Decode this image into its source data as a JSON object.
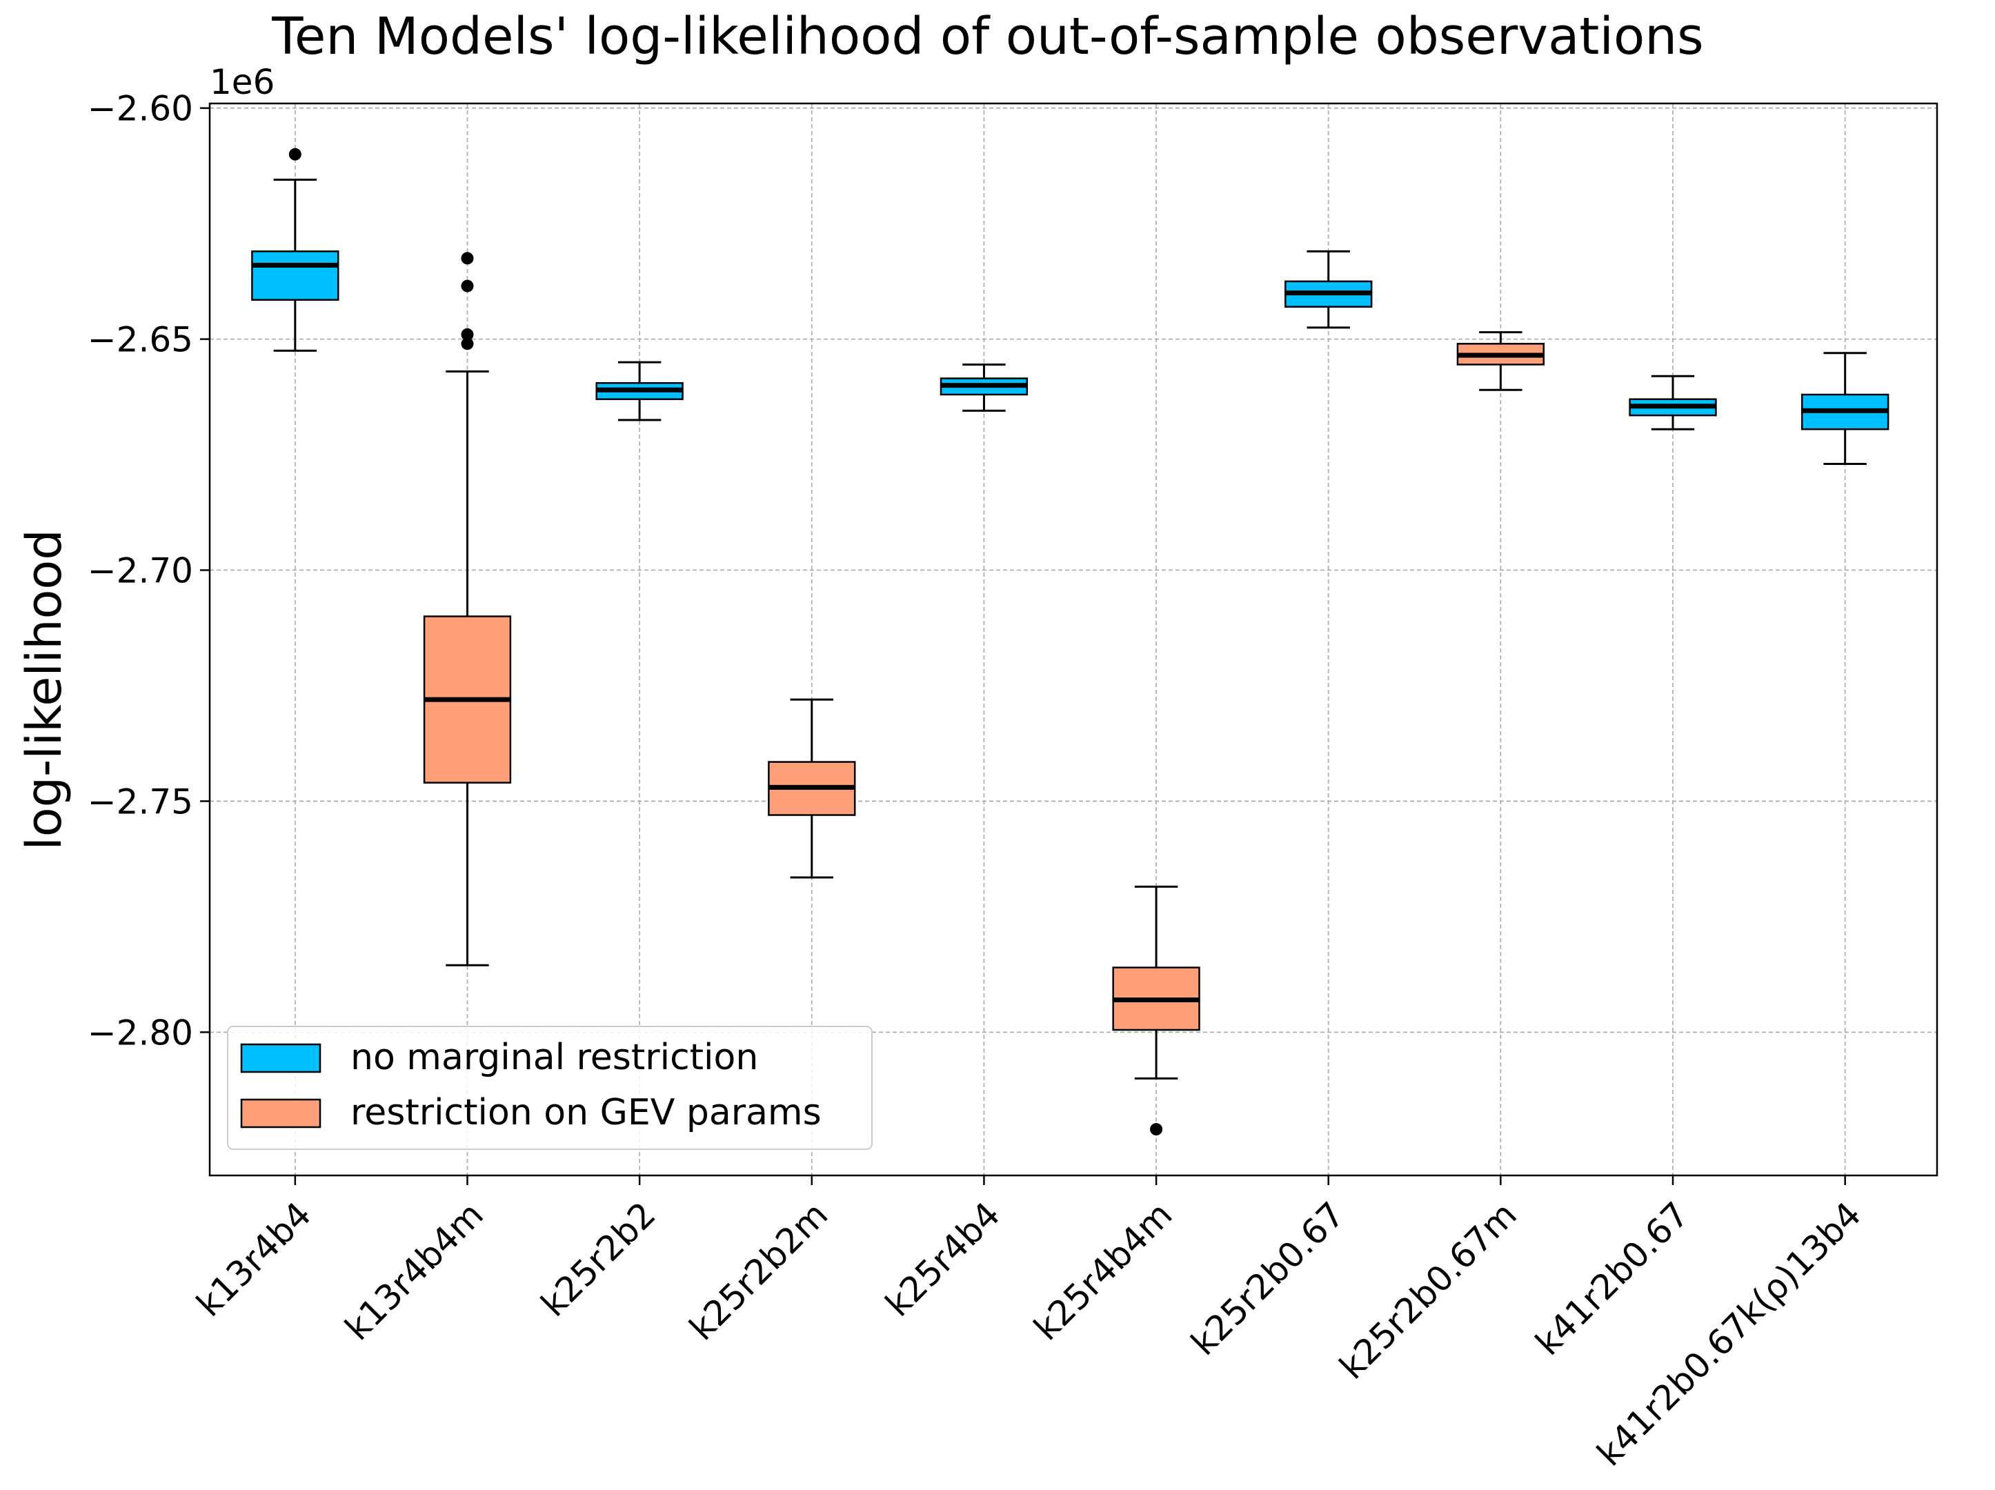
{
  "chart_data": {
    "type": "box",
    "title": "Ten Models' log-likelihood of out-of-sample observations",
    "xlabel": "",
    "ylabel": "log-likelihood",
    "y_offset_label": "1e6",
    "ylim": [
      -2.831,
      -2.599
    ],
    "yticks": [
      -2.6,
      -2.65,
      -2.7,
      -2.75,
      -2.8
    ],
    "ytick_labels": [
      "−2.60",
      "−2.65",
      "−2.70",
      "−2.75",
      "−2.80"
    ],
    "grid": true,
    "legend_position": "lower-left",
    "legend": [
      {
        "label": "no marginal restriction",
        "color": "#00bfff"
      },
      {
        "label": "restriction on GEV params",
        "color": "#ffa07a"
      }
    ],
    "categories": [
      "k13r4b4",
      "k13r4b4m",
      "k25r2b2",
      "k25r2b2m",
      "k25r4b4",
      "k25r4b4m",
      "k25r2b0.67",
      "k25r2b0.67m",
      "k41r2b0.67",
      "k41r2b0.67k(ρ)13b4"
    ],
    "boxes": [
      {
        "group": 0,
        "whisker_low": -2.6525,
        "q1": -2.6415,
        "median": -2.634,
        "q3": -2.631,
        "whisker_high": -2.6155,
        "outliers": [
          -2.61
        ]
      },
      {
        "group": 1,
        "whisker_low": -2.7855,
        "q1": -2.746,
        "median": -2.728,
        "q3": -2.71,
        "whisker_high": -2.657,
        "outliers": [
          -2.6325,
          -2.6385,
          -2.649,
          -2.651
        ]
      },
      {
        "group": 0,
        "whisker_low": -2.6675,
        "q1": -2.663,
        "median": -2.661,
        "q3": -2.6595,
        "whisker_high": -2.655,
        "outliers": []
      },
      {
        "group": 1,
        "whisker_low": -2.7665,
        "q1": -2.753,
        "median": -2.747,
        "q3": -2.7415,
        "whisker_high": -2.728,
        "outliers": []
      },
      {
        "group": 0,
        "whisker_low": -2.6655,
        "q1": -2.662,
        "median": -2.66,
        "q3": -2.6585,
        "whisker_high": -2.6555,
        "outliers": []
      },
      {
        "group": 1,
        "whisker_low": -2.81,
        "q1": -2.7995,
        "median": -2.793,
        "q3": -2.786,
        "whisker_high": -2.7685,
        "outliers": [
          -2.821
        ]
      },
      {
        "group": 0,
        "whisker_low": -2.6475,
        "q1": -2.643,
        "median": -2.64,
        "q3": -2.6375,
        "whisker_high": -2.631,
        "outliers": []
      },
      {
        "group": 1,
        "whisker_low": -2.661,
        "q1": -2.6555,
        "median": -2.6535,
        "q3": -2.651,
        "whisker_high": -2.6485,
        "outliers": []
      },
      {
        "group": 0,
        "whisker_low": -2.6695,
        "q1": -2.6665,
        "median": -2.6645,
        "q3": -2.663,
        "whisker_high": -2.658,
        "outliers": []
      },
      {
        "group": 0,
        "whisker_low": -2.677,
        "q1": -2.6695,
        "median": -2.6655,
        "q3": -2.662,
        "whisker_high": -2.653,
        "outliers": []
      }
    ]
  }
}
